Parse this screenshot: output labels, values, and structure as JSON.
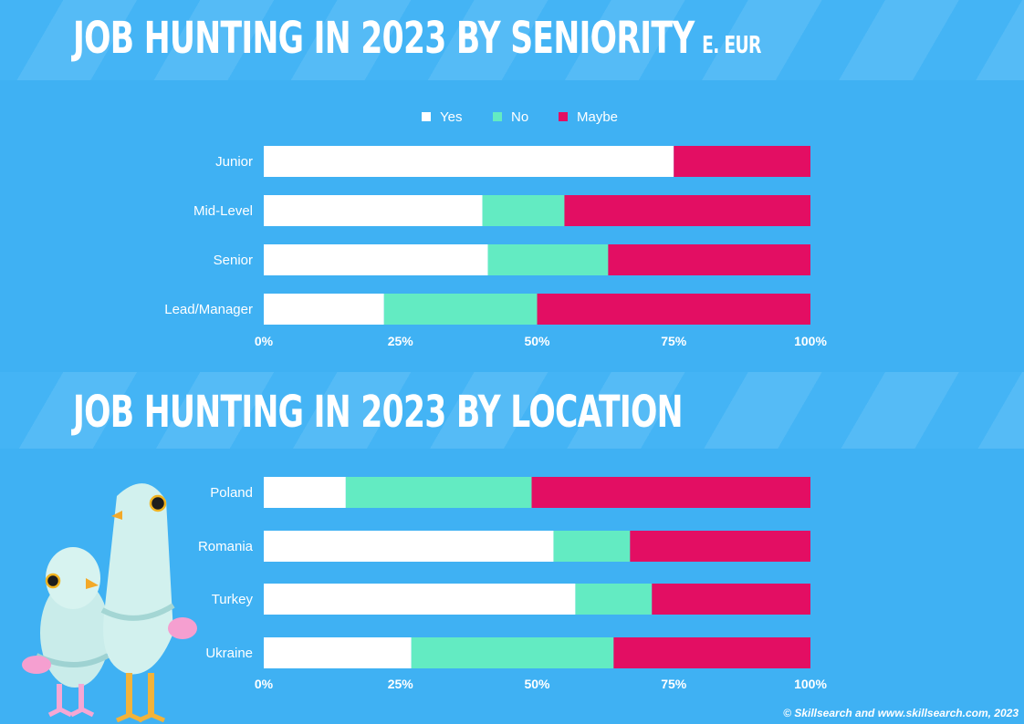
{
  "colors": {
    "yes": "#ffffff",
    "no": "#63ebc2",
    "maybe": "#e30e63",
    "background": "#3fb1f3"
  },
  "seniority": {
    "title": "JOB HUNTING IN 2023 BY SENIORITY",
    "title_suffix": "E. EUR"
  },
  "location": {
    "title": "JOB HUNTING IN 2023 BY LOCATION"
  },
  "legend": [
    {
      "key": "yes",
      "label": "Yes"
    },
    {
      "key": "no",
      "label": "No"
    },
    {
      "key": "maybe",
      "label": "Maybe"
    }
  ],
  "chart_data": [
    {
      "type": "bar",
      "orientation": "horizontal",
      "stacked": "percent",
      "title": "JOB HUNTING IN 2023 BY SENIORITY",
      "categories": [
        "Junior",
        "Mid-Level",
        "Senior",
        "Lead/Manager"
      ],
      "series": [
        {
          "name": "Yes",
          "values": [
            75,
            40,
            41,
            22
          ]
        },
        {
          "name": "No",
          "values": [
            0,
            15,
            22,
            28
          ]
        },
        {
          "name": "Maybe",
          "values": [
            25,
            45,
            37,
            50
          ]
        }
      ],
      "xticks": [
        "0%",
        "25%",
        "50%",
        "75%",
        "100%"
      ],
      "xlim": [
        0,
        100
      ],
      "legend_position": "top",
      "grid": false
    },
    {
      "type": "bar",
      "orientation": "horizontal",
      "stacked": "percent",
      "title": "JOB HUNTING IN 2023 BY LOCATION",
      "categories": [
        "Poland",
        "Romania",
        "Turkey",
        "Ukraine"
      ],
      "series": [
        {
          "name": "Yes",
          "values": [
            15,
            53,
            57,
            27
          ]
        },
        {
          "name": "No",
          "values": [
            34,
            14,
            14,
            37
          ]
        },
        {
          "name": "Maybe",
          "values": [
            51,
            33,
            29,
            36
          ]
        }
      ],
      "xticks": [
        "0%",
        "25%",
        "50%",
        "75%",
        "100%"
      ],
      "xlim": [
        0,
        100
      ],
      "legend_position": "none",
      "grid": false
    }
  ],
  "footer": "© Skillsearch and www.skillsearch.com, 2023"
}
